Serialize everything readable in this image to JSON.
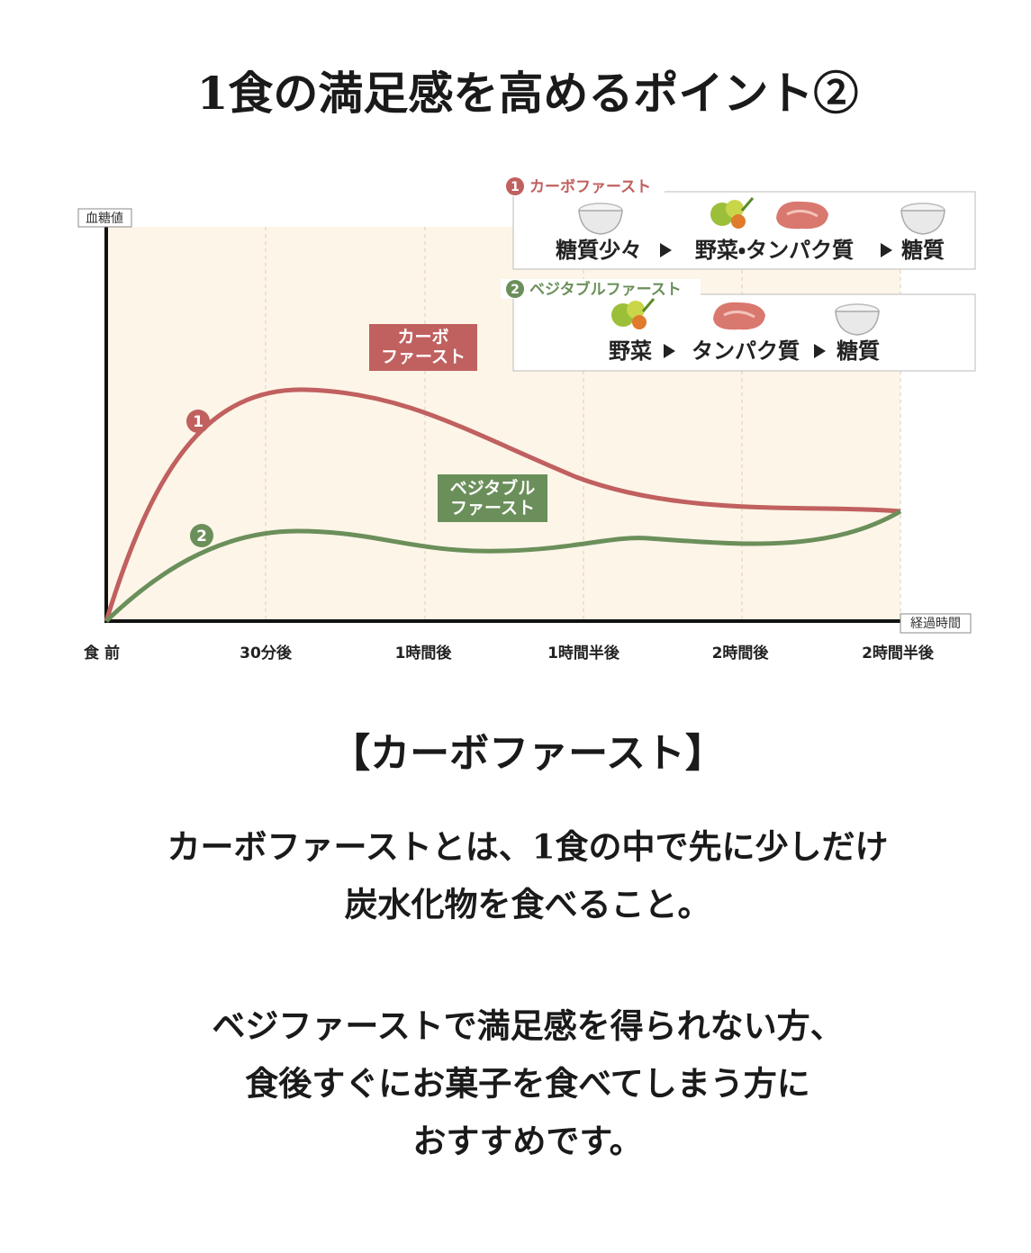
{
  "title": "1食の満足感を高めるポイント②",
  "chart": {
    "y_axis_label": "血糖値",
    "x_axis_label": "経過時間",
    "x_labels": [
      "食 前",
      "30分後",
      "1時間後",
      "1時間半後",
      "2時間後",
      "2時間半後"
    ],
    "curve_labels": [
      {
        "number": "1",
        "lines": [
          "カーボ",
          "ファースト"
        ]
      },
      {
        "number": "2",
        "lines": [
          "ベジタブル",
          "ファースト"
        ]
      }
    ]
  },
  "legend": [
    {
      "number": "1",
      "title": "カーボファースト",
      "steps": [
        "糖質少々",
        "野菜・タンパク質",
        "糖質"
      ]
    },
    {
      "number": "2",
      "title": "ベジタブルファースト",
      "steps": [
        "野菜",
        "タンパク質",
        "糖質"
      ]
    }
  ],
  "body": {
    "heading": "【カーボファースト】",
    "paragraphs": [
      [
        "カーボファーストとは、1食の中で先に少しだけ",
        "炭水化物を食べること。"
      ],
      [
        "ベジファーストで満足感を得られない方、",
        "食後すぐにお菓子を食べてしまう方に",
        "おすすめです。"
      ]
    ]
  }
}
